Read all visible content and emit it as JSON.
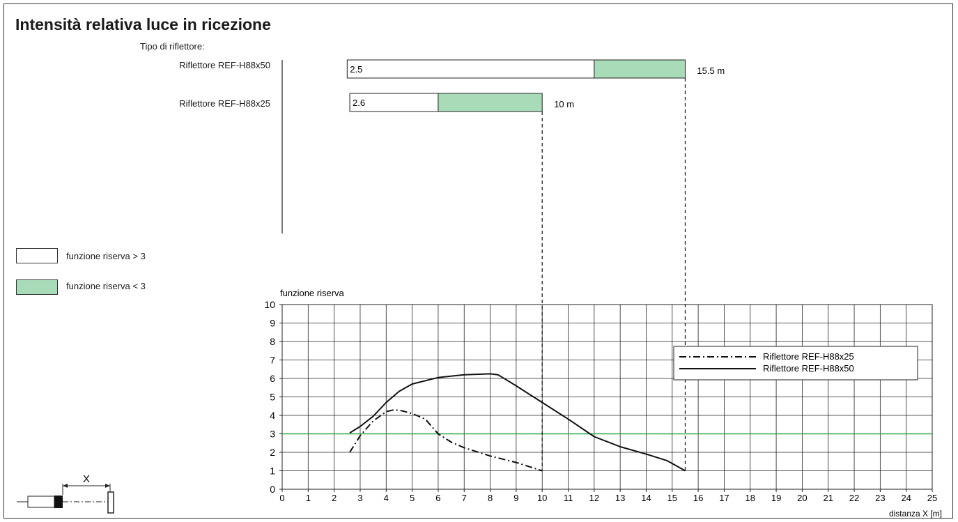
{
  "title": "Intensità relativa luce in ricezione",
  "reflector_type_label": "Tipo di riflettore:",
  "reflectors": [
    {
      "name": "Riflettore REF-H88x50",
      "start": 2.5,
      "start_label": "2.5",
      "switch": 12.0,
      "end": 15.5,
      "end_label": "15.5 m"
    },
    {
      "name": "Riflettore REF-H88x25",
      "start": 2.6,
      "start_label": "2.6",
      "switch": 6.0,
      "end": 10.0,
      "end_label": "10 m"
    }
  ],
  "legend": {
    "reserve_above": "funzione riserva > 3",
    "reserve_below": "funzione riserva < 3"
  },
  "colors": {
    "reserve_below": "#a8dcb8",
    "threshold": "#2aa84a",
    "grid": "#222222"
  },
  "diagram": {
    "distance_label": "X"
  },
  "chart_data": {
    "type": "line",
    "ylabel": "funzione riserva",
    "xlabel": "distanza X [m]",
    "xlim": [
      0,
      25
    ],
    "ylim": [
      0,
      10
    ],
    "x_ticks": [
      "0",
      "1",
      "2",
      "3",
      "4",
      "5",
      "6",
      "7",
      "8",
      "9",
      "10",
      "11",
      "12",
      "13",
      "14",
      "15",
      "16",
      "17",
      "18",
      "19",
      "20",
      "21",
      "22",
      "23",
      "24",
      "25"
    ],
    "y_ticks": [
      "0",
      "1",
      "2",
      "3",
      "4",
      "5",
      "6",
      "7",
      "8",
      "9",
      "10"
    ],
    "grid": true,
    "threshold": 3,
    "legend_position": "top-right",
    "series": [
      {
        "name": "Riflettore REF-H88x25",
        "style": "dash-dot",
        "x": [
          2.6,
          3.0,
          3.5,
          4.0,
          4.3,
          4.6,
          5.0,
          5.5,
          6.0,
          6.5,
          7.0,
          8.0,
          9.0,
          10.0
        ],
        "y": [
          2.0,
          2.9,
          3.7,
          4.2,
          4.3,
          4.25,
          4.1,
          3.8,
          3.0,
          2.55,
          2.25,
          1.8,
          1.45,
          1.0
        ]
      },
      {
        "name": "Riflettore REF-H88x50",
        "style": "solid",
        "x": [
          2.6,
          3.0,
          3.5,
          4.0,
          4.5,
          5.0,
          6.0,
          7.0,
          8.0,
          8.3,
          9.0,
          10.0,
          11.0,
          12.0,
          13.0,
          14.0,
          14.8,
          15.5
        ],
        "y": [
          3.05,
          3.4,
          3.95,
          4.7,
          5.3,
          5.7,
          6.05,
          6.2,
          6.25,
          6.2,
          5.6,
          4.7,
          3.8,
          2.85,
          2.3,
          1.9,
          1.55,
          1.0
        ]
      }
    ]
  }
}
